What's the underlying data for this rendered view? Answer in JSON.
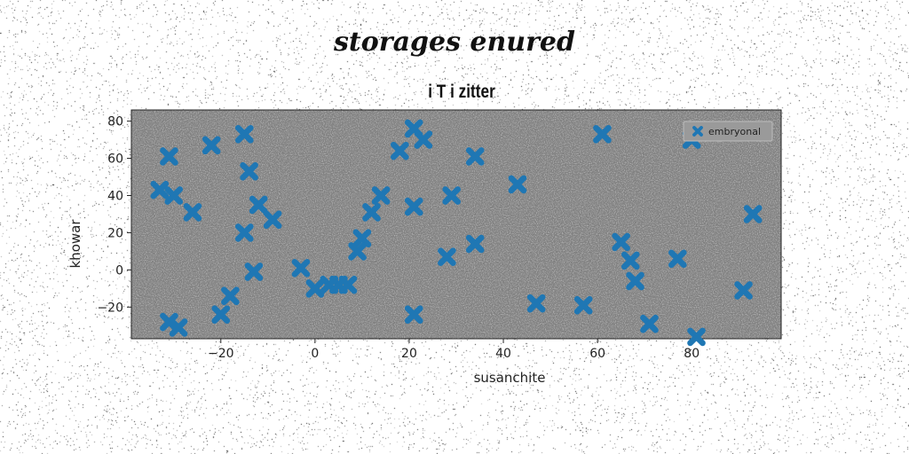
{
  "suptitle": "storages enured",
  "chart_data": {
    "type": "scatter",
    "title": "i T i zitter",
    "xlabel": "susanchite",
    "ylabel": "khowar",
    "xlim": [
      -39,
      99
    ],
    "ylim": [
      -37,
      86
    ],
    "xticks": [
      -20,
      0,
      20,
      40,
      60,
      80
    ],
    "yticks": [
      -20,
      0,
      20,
      40,
      60,
      80
    ],
    "legend_placement": "top-right",
    "grid": false,
    "background_color": "#808080",
    "series": [
      {
        "name": "embryonal",
        "marker": "X",
        "color": "#1f77b4",
        "points": [
          [
            -33,
            43
          ],
          [
            -30,
            40
          ],
          [
            -31,
            61
          ],
          [
            -26,
            31
          ],
          [
            -22,
            67
          ],
          [
            -15,
            73
          ],
          [
            -14,
            53
          ],
          [
            -12,
            35
          ],
          [
            -15,
            20
          ],
          [
            -9,
            27
          ],
          [
            -13,
            -1
          ],
          [
            -18,
            -14
          ],
          [
            -20,
            -24
          ],
          [
            -31,
            -28
          ],
          [
            -29,
            -31
          ],
          [
            -3,
            1
          ],
          [
            0,
            -10
          ],
          [
            3,
            -8
          ],
          [
            5,
            -8
          ],
          [
            7,
            -8
          ],
          [
            10,
            17
          ],
          [
            9,
            10
          ],
          [
            12,
            31
          ],
          [
            14,
            40
          ],
          [
            18,
            64
          ],
          [
            21,
            76
          ],
          [
            23,
            70
          ],
          [
            21,
            34
          ],
          [
            29,
            40
          ],
          [
            34,
            61
          ],
          [
            28,
            7
          ],
          [
            34,
            14
          ],
          [
            21,
            -24
          ],
          [
            43,
            46
          ],
          [
            47,
            -18
          ],
          [
            57,
            -19
          ],
          [
            61,
            73
          ],
          [
            65,
            15
          ],
          [
            67,
            5
          ],
          [
            68,
            -6
          ],
          [
            71,
            -29
          ],
          [
            77,
            6
          ],
          [
            80,
            70
          ],
          [
            81,
            -36
          ],
          [
            91,
            -11
          ],
          [
            93,
            30
          ]
        ]
      }
    ]
  }
}
